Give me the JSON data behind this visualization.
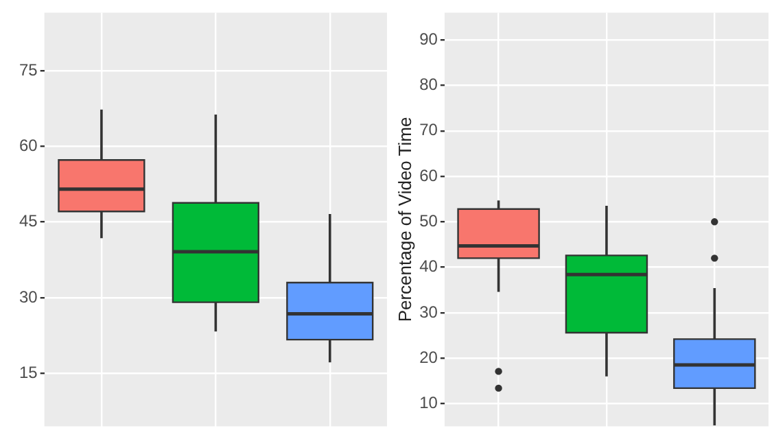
{
  "chart_data": [
    {
      "type": "box",
      "categories": [
        null,
        null,
        null
      ],
      "colors": [
        "#f8766d",
        "#00ba38",
        "#619cff"
      ],
      "boxes": [
        {
          "low": 41.8,
          "q1": 47.1,
          "median": 51.5,
          "q3": 57.3,
          "high": 67.3
        },
        {
          "low": 23.3,
          "q1": 29.1,
          "median": 39.1,
          "q3": 48.8,
          "high": 66.3
        },
        {
          "low": 17.2,
          "q1": 21.7,
          "median": 26.8,
          "q3": 33.0,
          "high": 46.6
        }
      ],
      "ylim": [
        4.5,
        86.5
      ],
      "yticks": [
        15,
        30,
        45,
        60,
        75
      ],
      "grid": true,
      "tick_labels": "y"
    },
    {
      "type": "box",
      "ylabel": "Percentage of Video Time",
      "categories": [
        null,
        null,
        null
      ],
      "colors": [
        "#f8766d",
        "#00ba38",
        "#619cff"
      ],
      "boxes": [
        {
          "low": 34.6,
          "q1": 42.0,
          "median": 44.7,
          "q3": 52.8,
          "high": 54.7,
          "outliers": [
            17.1,
            13.4
          ]
        },
        {
          "low": 16.0,
          "q1": 25.6,
          "median": 38.4,
          "q3": 42.6,
          "high": 53.5
        },
        {
          "low": 5.2,
          "q1": 13.4,
          "median": 18.5,
          "q3": 24.2,
          "high": 35.4,
          "outliers": [
            50.0,
            42.0
          ]
        }
      ],
      "ylim": [
        5,
        96
      ],
      "yticks": [
        10,
        20,
        30,
        40,
        50,
        60,
        70,
        80,
        90
      ],
      "grid": true,
      "tick_labels": "y"
    }
  ]
}
